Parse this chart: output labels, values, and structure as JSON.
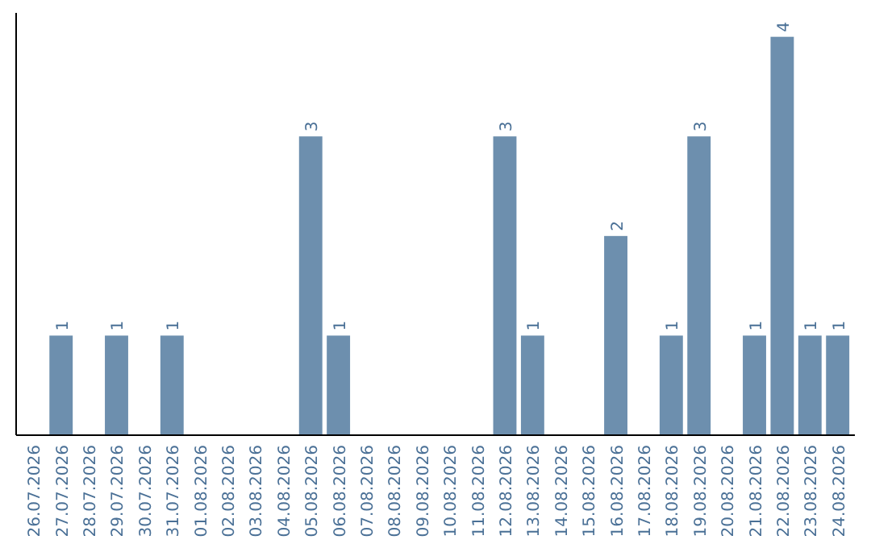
{
  "chart_data": {
    "type": "bar",
    "categories": [
      "26.07.2026",
      "27.07.2026",
      "28.07.2026",
      "29.07.2026",
      "30.07.2026",
      "31.07.2026",
      "01.08.2026",
      "02.08.2026",
      "03.08.2026",
      "04.08.2026",
      "05.08.2026",
      "06.08.2026",
      "07.08.2026",
      "08.08.2026",
      "09.08.2026",
      "10.08.2026",
      "11.08.2026",
      "12.08.2026",
      "13.08.2026",
      "14.08.2026",
      "15.08.2026",
      "16.08.2026",
      "17.08.2026",
      "18.08.2026",
      "19.08.2026",
      "20.08.2026",
      "21.08.2026",
      "22.08.2026",
      "23.08.2026",
      "24.08.2026"
    ],
    "values": [
      0,
      1,
      0,
      1,
      0,
      1,
      0,
      0,
      0,
      0,
      3,
      1,
      0,
      0,
      0,
      0,
      0,
      3,
      1,
      0,
      0,
      2,
      0,
      1,
      3,
      0,
      1,
      4,
      1,
      1
    ],
    "value_labels": [
      null,
      "1",
      null,
      "1",
      null,
      "1",
      null,
      null,
      null,
      null,
      "3",
      "1",
      null,
      null,
      null,
      null,
      null,
      "3",
      "1",
      null,
      null,
      "2",
      null,
      "1",
      "3",
      null,
      "1",
      "4",
      "1",
      "1"
    ],
    "color": "#6d8fae",
    "tick_labels": "x",
    "grid": false
  }
}
